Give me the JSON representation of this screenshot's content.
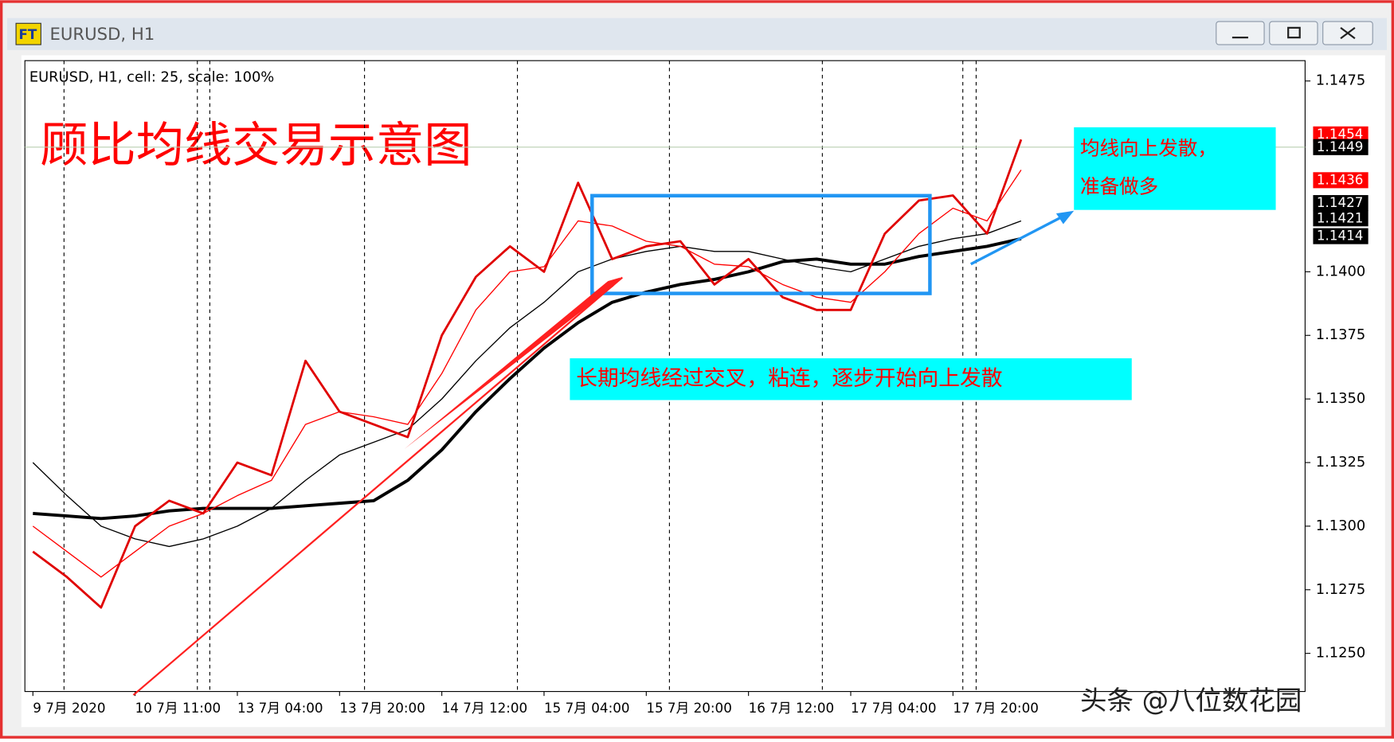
{
  "window_title": "EURUSD, H1",
  "chart_data": {
    "type": "line",
    "header": "EURUSD, H1, cell: 25, scale: 100%",
    "title": "顾比均线交易示意图",
    "annotations": [
      "均线向上发散，",
      "准备做多",
      "长期均线经过交叉，粘连，逐步开始向上发散"
    ],
    "watermark": "头条 @八位数花园",
    "categories": [
      "9 7月 2020",
      null,
      null,
      "10 7月 11:00",
      null,
      null,
      "13 7月 04:00",
      null,
      null,
      "13 7月 20:00",
      null,
      null,
      "14 7月 12:00",
      null,
      null,
      "15 7月 04:00",
      null,
      null,
      "15 7月 20:00",
      null,
      null,
      "16 7月 12:00",
      null,
      null,
      "17 7月 04:00",
      null,
      null,
      "17 7月 20:00",
      null,
      null
    ],
    "series": [
      {
        "color": "#000000",
        "values": [
          1.1305,
          1.1304,
          1.1303,
          1.1304,
          1.1306,
          1.1307,
          1.1307,
          1.1307,
          1.1308,
          1.1309,
          1.131,
          1.1318,
          1.133,
          1.1345,
          1.1358,
          1.137,
          1.138,
          1.1388,
          1.1392,
          1.1395,
          1.1397,
          1.14,
          1.1404,
          1.1405,
          1.1403,
          1.1403,
          1.1406,
          1.1408,
          1.141,
          1.1413
        ]
      },
      {
        "color": "#000000",
        "values": [
          1.1325,
          1.1312,
          1.13,
          1.1295,
          1.1292,
          1.1295,
          1.13,
          1.1307,
          1.1318,
          1.1328,
          1.1333,
          1.1338,
          1.135,
          1.1365,
          1.1378,
          1.1388,
          1.14,
          1.1405,
          1.1408,
          1.141,
          1.1408,
          1.1408,
          1.1405,
          1.1402,
          1.14,
          1.1405,
          1.141,
          1.1413,
          1.1415,
          1.142
        ]
      },
      {
        "color": "#ff0000",
        "values": [
          1.13,
          1.129,
          1.128,
          1.129,
          1.13,
          1.1305,
          1.1312,
          1.1318,
          1.134,
          1.1345,
          1.1343,
          1.134,
          1.136,
          1.1385,
          1.14,
          1.1402,
          1.142,
          1.1418,
          1.1412,
          1.141,
          1.1403,
          1.1402,
          1.1395,
          1.139,
          1.1388,
          1.14,
          1.1415,
          1.1425,
          1.142,
          1.144
        ]
      },
      {
        "color": "#e00000",
        "values": [
          1.129,
          1.128,
          1.1268,
          1.13,
          1.131,
          1.1305,
          1.1325,
          1.132,
          1.1365,
          1.1345,
          1.134,
          1.1335,
          1.1375,
          1.1398,
          1.141,
          1.14,
          1.1435,
          1.1405,
          1.141,
          1.1412,
          1.1395,
          1.1405,
          1.139,
          1.1385,
          1.1385,
          1.1415,
          1.1428,
          1.143,
          1.1415,
          1.1452
        ]
      }
    ],
    "ylim": [
      1.1235,
      1.1483
    ],
    "yticks": [
      {
        "value": 1.125,
        "label": "1.1250"
      },
      1.1275,
      {
        "value": 1.13,
        "label": "1.1300"
      },
      1.1325,
      {
        "value": 1.135,
        "label": "1.1350"
      },
      1.1375,
      {
        "value": 1.14,
        "label": "1.1400"
      },
      1.1475
    ],
    "price_labels": [
      {
        "value": 1.1454,
        "color": "#ff0000"
      },
      {
        "value": 1.1449,
        "color": "#000000"
      },
      {
        "value": 1.1436,
        "color": "#ff0000"
      },
      {
        "value": 1.1427,
        "color": "#000000"
      },
      {
        "value": 1.1421,
        "color": "#000000"
      },
      {
        "value": 1.1414,
        "color": "#000000"
      }
    ],
    "grid": false
  }
}
